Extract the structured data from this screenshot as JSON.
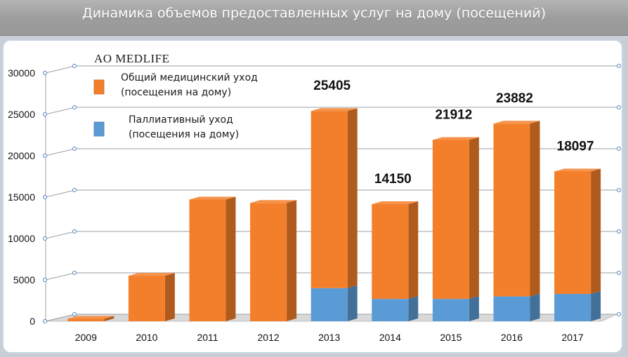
{
  "header": {
    "title": "Динамика объемов предоставленных услуг на дому (посещений)"
  },
  "chart_data": {
    "type": "bar",
    "stacked": true,
    "three_d": true,
    "title": "Динамика объемов предоставленных услуг на дому (посещений)",
    "subtitle": "AO MEDLIFE",
    "categories": [
      "2009",
      "2010",
      "2011",
      "2012",
      "2013",
      "2014",
      "2015",
      "2016",
      "2017"
    ],
    "ylim": [
      0,
      30000
    ],
    "yticks": [
      "0",
      "5000",
      "10000",
      "15000",
      "20000",
      "25000",
      "30000"
    ],
    "grid": true,
    "legend_position": "top-left",
    "series": [
      {
        "name_lines": [
          "Паллиативный уход",
          "(посещения на дому)"
        ],
        "color": "#5b9bd5",
        "values": [
          0,
          0,
          0,
          0,
          4000,
          2700,
          2700,
          3000,
          3300
        ]
      },
      {
        "name_lines": [
          "Общий медицинский уход",
          "(посещения на дому)"
        ],
        "color": "#f47f2a",
        "values": [
          300,
          5500,
          14700,
          14300,
          21405,
          11450,
          19212,
          20882,
          14797
        ]
      }
    ],
    "data_labels": [
      "",
      "",
      "",
      "",
      "25405",
      "14150",
      "21912",
      "23882",
      "18097"
    ]
  }
}
